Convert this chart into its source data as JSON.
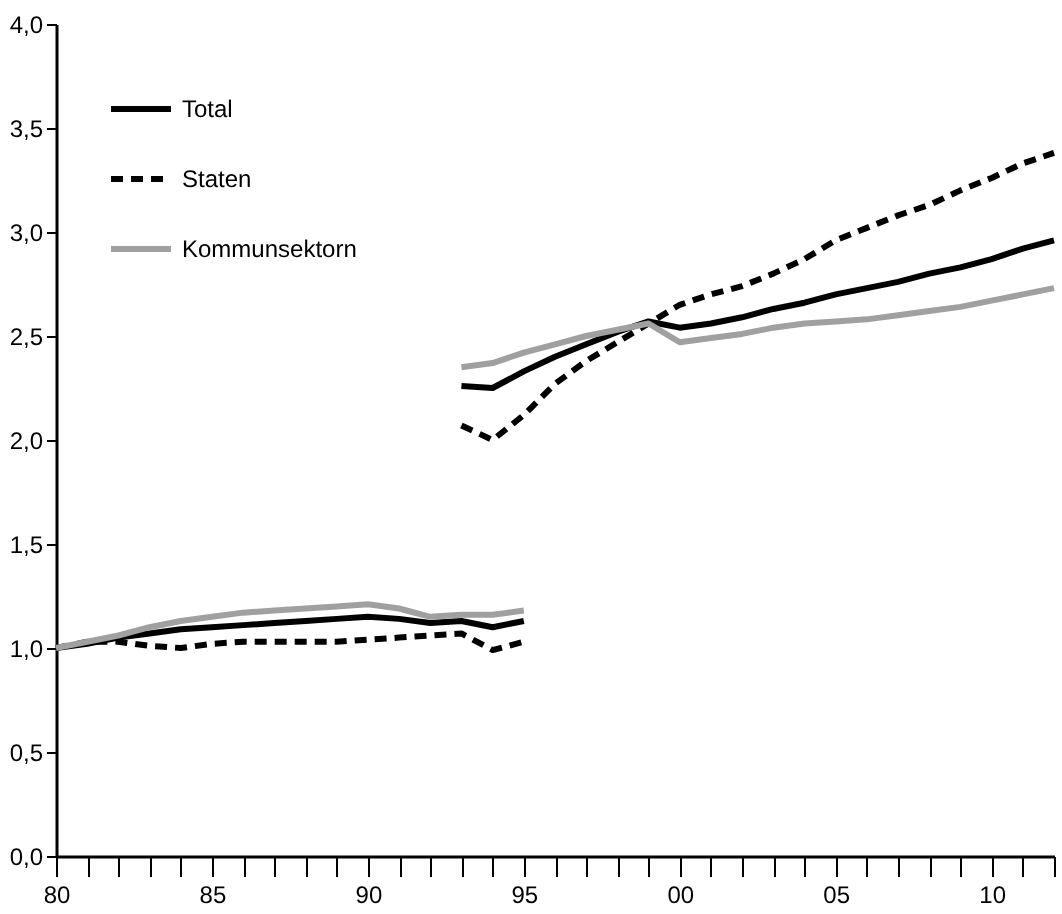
{
  "chart_data": {
    "type": "line",
    "x": [
      1993,
      1994,
      1995,
      1996,
      1997,
      1998,
      1999,
      2000,
      2001,
      2002,
      2003,
      2004,
      2005,
      2006,
      2007,
      2008,
      2009,
      2010,
      2011,
      2012
    ],
    "series": [
      {
        "name": "Total",
        "color": "#000000",
        "line_style": "solid",
        "values": [
          2.26,
          2.25,
          2.33,
          2.4,
          2.46,
          2.52,
          2.57,
          2.54,
          2.56,
          2.59,
          2.63,
          2.66,
          2.7,
          2.73,
          2.76,
          2.8,
          2.83,
          2.87,
          2.92,
          2.96
        ]
      },
      {
        "name": "Staten",
        "color": "#000000",
        "line_style": "dashed",
        "values": [
          2.07,
          2.0,
          2.12,
          2.27,
          2.38,
          2.47,
          2.56,
          2.65,
          2.7,
          2.74,
          2.8,
          2.87,
          2.96,
          3.02,
          3.08,
          3.13,
          3.2,
          3.26,
          3.33,
          3.38
        ]
      },
      {
        "name": "Kommunsektorn",
        "color": "#a0a0a0",
        "line_style": "solid",
        "values": [
          2.35,
          2.37,
          2.42,
          2.46,
          2.5,
          2.53,
          2.56,
          2.47,
          2.49,
          2.51,
          2.54,
          2.56,
          2.57,
          2.58,
          2.6,
          2.62,
          2.64,
          2.67,
          2.7,
          2.73
        ]
      },
      {
        "color": "#000000",
        "line_style": "solid",
        "x": [
          1980,
          1981,
          1982,
          1983,
          1984,
          1985,
          1986,
          1987,
          1988,
          1989,
          1990,
          1991,
          1992,
          1993,
          1994,
          1995
        ],
        "values": [
          1.0,
          1.02,
          1.05,
          1.07,
          1.09,
          1.1,
          1.11,
          1.12,
          1.13,
          1.14,
          1.15,
          1.14,
          1.12,
          1.13,
          1.1,
          1.13
        ]
      },
      {
        "color": "#000000",
        "line_style": "dashed",
        "x": [
          1980,
          1981,
          1982,
          1983,
          1984,
          1985,
          1986,
          1987,
          1988,
          1989,
          1990,
          1991,
          1992,
          1993,
          1994,
          1995
        ],
        "values": [
          1.0,
          1.03,
          1.03,
          1.01,
          1.0,
          1.02,
          1.03,
          1.03,
          1.03,
          1.03,
          1.04,
          1.05,
          1.06,
          1.07,
          0.99,
          1.03
        ]
      },
      {
        "color": "#a0a0a0",
        "line_style": "solid",
        "x": [
          1980,
          1981,
          1982,
          1983,
          1984,
          1985,
          1986,
          1987,
          1988,
          1989,
          1990,
          1991,
          1992,
          1993,
          1994,
          1995
        ],
        "values": [
          1.0,
          1.03,
          1.06,
          1.1,
          1.13,
          1.15,
          1.17,
          1.18,
          1.19,
          1.2,
          1.21,
          1.19,
          1.15,
          1.16,
          1.16,
          1.18
        ]
      }
    ],
    "xlim": [
      1980,
      2012
    ],
    "xticks": [
      {
        "value": 1980,
        "label": "80"
      },
      {
        "value": 1981,
        "label": null
      },
      {
        "value": 1982,
        "label": null
      },
      {
        "value": 1983,
        "label": null
      },
      {
        "value": 1984,
        "label": null
      },
      {
        "value": 1985,
        "label": "85"
      },
      {
        "value": 1986,
        "label": null
      },
      {
        "value": 1987,
        "label": null
      },
      {
        "value": 1988,
        "label": null
      },
      {
        "value": 1989,
        "label": null
      },
      {
        "value": 1990,
        "label": "90"
      },
      {
        "value": 1991,
        "label": null
      },
      {
        "value": 1992,
        "label": null
      },
      {
        "value": 1993,
        "label": null
      },
      {
        "value": 1994,
        "label": null
      },
      {
        "value": 1995,
        "label": "95"
      },
      {
        "value": 1996,
        "label": null
      },
      {
        "value": 1997,
        "label": null
      },
      {
        "value": 1998,
        "label": null
      },
      {
        "value": 1999,
        "label": null
      },
      {
        "value": 2000,
        "label": "00"
      },
      {
        "value": 2001,
        "label": null
      },
      {
        "value": 2002,
        "label": null
      },
      {
        "value": 2003,
        "label": null
      },
      {
        "value": 2004,
        "label": null
      },
      {
        "value": 2005,
        "label": "05"
      },
      {
        "value": 2006,
        "label": null
      },
      {
        "value": 2007,
        "label": null
      },
      {
        "value": 2008,
        "label": null
      },
      {
        "value": 2009,
        "label": null
      },
      {
        "value": 2010,
        "label": "10"
      },
      {
        "value": 2011,
        "label": null
      },
      {
        "value": 2012,
        "label": null
      }
    ],
    "ylim": [
      0,
      4
    ],
    "yticks": [
      {
        "value": 0,
        "label": "0,0"
      },
      {
        "value": 0.5,
        "label": "0,5"
      },
      {
        "value": 1,
        "label": "1,0"
      },
      {
        "value": 1.5,
        "label": "1,5"
      },
      {
        "value": 2,
        "label": "2,0"
      },
      {
        "value": 2.5,
        "label": "2,5"
      },
      {
        "value": 3,
        "label": "3,0"
      },
      {
        "value": 3.5,
        "label": "3,5"
      },
      {
        "value": 4,
        "label": "4,0"
      }
    ],
    "legend": "top left",
    "grid": false
  }
}
